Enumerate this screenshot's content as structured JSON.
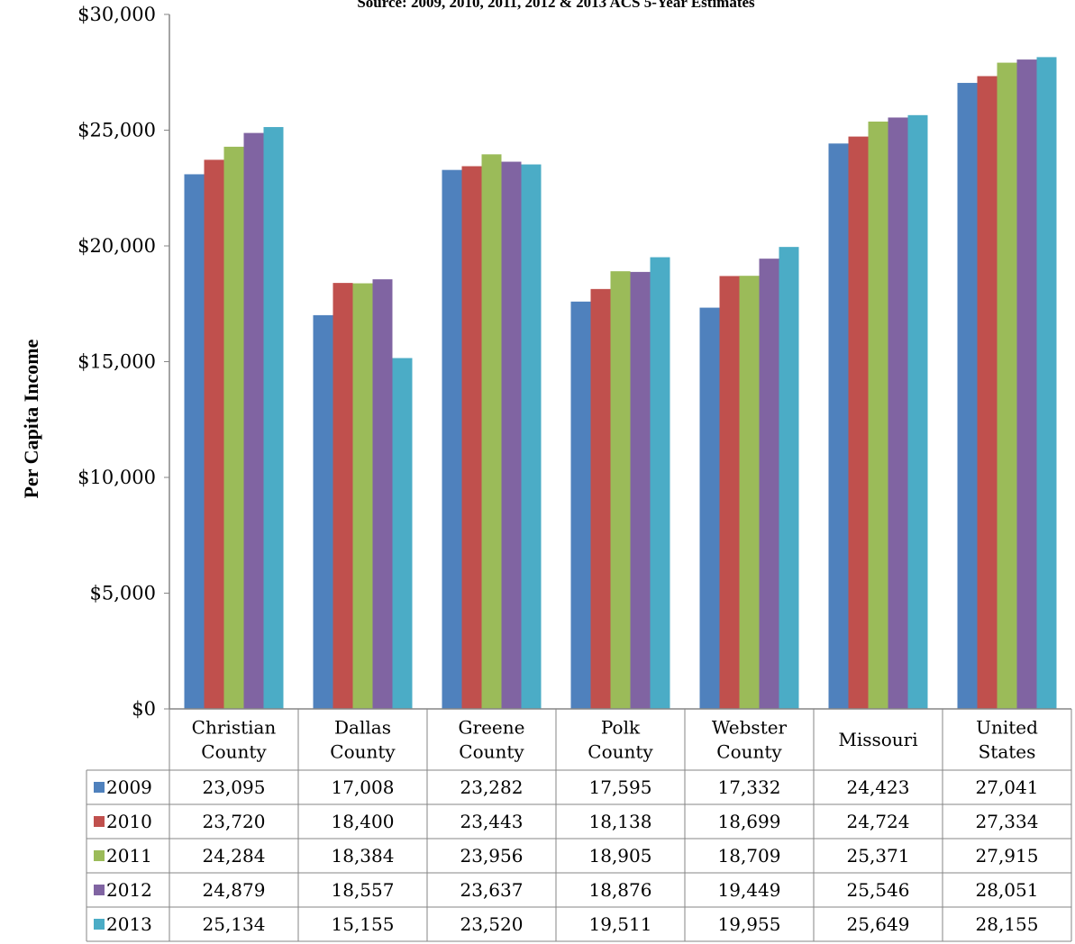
{
  "chart_data": {
    "type": "bar",
    "title": "Source: 2009, 2010, 2011, 2012 & 2013 ACS 5-Year Estimates",
    "ylabel": "Per Capita Income",
    "xlabel": "",
    "ylim": [
      0,
      30000
    ],
    "yticks": [
      {
        "value": 0,
        "label": "$0"
      },
      {
        "value": 5000,
        "label": "$5,000"
      },
      {
        "value": 10000,
        "label": "$10,000"
      },
      {
        "value": 15000,
        "label": "$15,000"
      },
      {
        "value": 20000,
        "label": "$20,000"
      },
      {
        "value": 25000,
        "label": "$25,000"
      },
      {
        "value": 30000,
        "label": "$30,000"
      }
    ],
    "grid": false,
    "legend": "data-table",
    "categories": [
      [
        "Christian",
        "County"
      ],
      [
        "Dallas",
        "County"
      ],
      [
        "Greene",
        "County"
      ],
      [
        "Polk",
        "County"
      ],
      [
        "Webster",
        "County"
      ],
      [
        "Missouri"
      ],
      [
        "United",
        "States"
      ]
    ],
    "series": [
      {
        "name": "2009",
        "color": "#4F81BD",
        "values": [
          23095,
          17008,
          23282,
          17595,
          17332,
          24423,
          27041
        ],
        "labels": [
          "23,095",
          "17,008",
          "23,282",
          "17,595",
          "17,332",
          "24,423",
          "27,041"
        ]
      },
      {
        "name": "2010",
        "color": "#C0504D",
        "values": [
          23720,
          18400,
          23443,
          18138,
          18699,
          24724,
          27334
        ],
        "labels": [
          "23,720",
          "18,400",
          "23,443",
          "18,138",
          "18,699",
          "24,724",
          "27,334"
        ]
      },
      {
        "name": "2011",
        "color": "#9BBB59",
        "values": [
          24284,
          18384,
          23956,
          18905,
          18709,
          25371,
          27915
        ],
        "labels": [
          "24,284",
          "18,384",
          "23,956",
          "18,905",
          "18,709",
          "25,371",
          "27,915"
        ]
      },
      {
        "name": "2012",
        "color": "#8064A2",
        "values": [
          24879,
          18557,
          23637,
          18876,
          19449,
          25546,
          28051
        ],
        "labels": [
          "24,879",
          "18,557",
          "23,637",
          "18,876",
          "19,449",
          "25,546",
          "28,051"
        ]
      },
      {
        "name": "2013",
        "color": "#4BACC6",
        "values": [
          25134,
          15155,
          23520,
          19511,
          19955,
          25649,
          28155
        ],
        "labels": [
          "25,134",
          "15,155",
          "23,520",
          "19,511",
          "19,955",
          "25,649",
          "28,155"
        ]
      }
    ]
  }
}
